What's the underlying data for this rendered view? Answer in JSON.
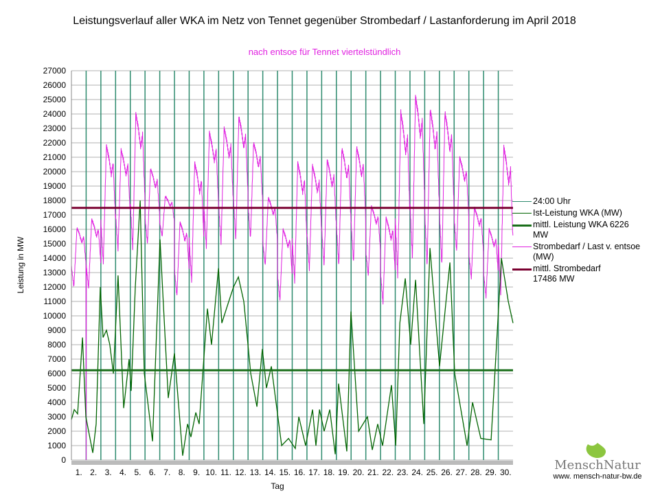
{
  "title": "Leistungsverlauf aller WKA im Netz von Tennet gegenüber  Strombedarf / Lastanforderung im April 2018",
  "subtitle": "nach entsoe für Tennet viertelstündlich",
  "colors": {
    "day_line": "#2e8b6e",
    "wind": "#006400",
    "wind_mean": "#1a6e1a",
    "demand": "#e020e0",
    "demand_mean": "#7a0030",
    "grid": "#b0b0b0"
  },
  "legend": [
    {
      "label": "24:00 Uhr"
    },
    {
      "label": "Ist-Leistung WKA (MW)"
    },
    {
      "label": "mittl. Leistung WKA 6226 MW"
    },
    {
      "label": "Strombedarf / Last v. entsoe (MW)"
    },
    {
      "label": "mittl. Strombedarf 17486 MW"
    }
  ],
  "logo": {
    "brand": "MenschNatur",
    "url": "www. mensch-natur-bw.de"
  },
  "chart_data": {
    "type": "line",
    "xlabel": "Tag",
    "ylabel": "Leistung in MW",
    "ylim": [
      0,
      27000
    ],
    "ystep": 1000,
    "xlim": [
      0,
      30
    ],
    "x_tick_labels": [
      "1.",
      "2.",
      "3.",
      "4.",
      "5.",
      "6.",
      "7.",
      "8.",
      "9.",
      "10.",
      "11.",
      "12.",
      "13.",
      "14.",
      "15.",
      "16.",
      "17.",
      "18.",
      "19.",
      "20.",
      "21.",
      "22.",
      "23.",
      "24.",
      "25.",
      "26.",
      "27.",
      "28.",
      "29.",
      "30."
    ],
    "grid": true,
    "legend_position": "right",
    "mean_lines": [
      {
        "name": "mittl. Leistung WKA",
        "value": 6226
      },
      {
        "name": "mittl. Strombedarf",
        "value": 17486
      }
    ],
    "demand_daily_min": [
      12000,
      11900,
      13700,
      14600,
      14600,
      15000,
      15500,
      11400,
      12400,
      14800,
      15000,
      15300,
      15400,
      13500,
      11100,
      12400,
      13200,
      13500,
      13500,
      13700,
      12800,
      10900,
      12800,
      14000,
      13500,
      13500,
      14500,
      12600,
      11300,
      11500
    ],
    "demand_daily_max": [
      16100,
      16700,
      21800,
      21500,
      24000,
      20200,
      18300,
      16500,
      20600,
      22700,
      23000,
      23800,
      22000,
      18200,
      16000,
      20600,
      20400,
      20800,
      21600,
      21700,
      17600,
      16800,
      24100,
      25200,
      24300,
      24100,
      21000,
      17500,
      16000,
      21700
    ],
    "demand_outlier": {
      "day": 1.0,
      "value": 0
    },
    "wind_points": [
      [
        0,
        2800
      ],
      [
        0.19,
        3500
      ],
      [
        0.42,
        3200
      ],
      [
        0.75,
        8500
      ],
      [
        0.98,
        3000
      ],
      [
        1.45,
        500
      ],
      [
        1.68,
        2500
      ],
      [
        1.96,
        12000
      ],
      [
        2.15,
        8500
      ],
      [
        2.38,
        9000
      ],
      [
        2.61,
        8000
      ],
      [
        2.85,
        6000
      ],
      [
        3.17,
        12800
      ],
      [
        3.55,
        3600
      ],
      [
        3.92,
        7000
      ],
      [
        4.06,
        4800
      ],
      [
        4.34,
        12000
      ],
      [
        4.67,
        18000
      ],
      [
        4.95,
        6000
      ],
      [
        5.51,
        1300
      ],
      [
        6.02,
        15300
      ],
      [
        6.58,
        4300
      ],
      [
        7.0,
        7400
      ],
      [
        7.56,
        300
      ],
      [
        7.89,
        2500
      ],
      [
        8.12,
        1600
      ],
      [
        8.45,
        3300
      ],
      [
        8.68,
        2500
      ],
      [
        9.24,
        10500
      ],
      [
        9.52,
        8000
      ],
      [
        9.99,
        13300
      ],
      [
        10.22,
        9500
      ],
      [
        10.69,
        11000
      ],
      [
        11.01,
        12000
      ],
      [
        11.34,
        12700
      ],
      [
        11.71,
        11000
      ],
      [
        12.18,
        6000
      ],
      [
        12.6,
        3700
      ],
      [
        12.97,
        7700
      ],
      [
        13.25,
        5000
      ],
      [
        13.58,
        6500
      ],
      [
        14.28,
        1000
      ],
      [
        14.75,
        1500
      ],
      [
        15.21,
        800
      ],
      [
        15.45,
        3000
      ],
      [
        15.91,
        1000
      ],
      [
        16.38,
        3500
      ],
      [
        16.61,
        1000
      ],
      [
        16.85,
        3500
      ],
      [
        17.17,
        2000
      ],
      [
        17.55,
        3500
      ],
      [
        17.92,
        400
      ],
      [
        18.15,
        5300
      ],
      [
        18.71,
        600
      ],
      [
        18.99,
        10300
      ],
      [
        19.51,
        2000
      ],
      [
        20.11,
        3000
      ],
      [
        20.44,
        700
      ],
      [
        20.81,
        2500
      ],
      [
        21.14,
        1000
      ],
      [
        21.74,
        5200
      ],
      [
        22.03,
        1000
      ],
      [
        22.31,
        9500
      ],
      [
        22.68,
        12600
      ],
      [
        23.05,
        8000
      ],
      [
        23.38,
        12500
      ],
      [
        23.94,
        2500
      ],
      [
        24.36,
        14700
      ],
      [
        25.01,
        6500
      ],
      [
        25.71,
        13700
      ],
      [
        26.04,
        6000
      ],
      [
        26.88,
        1000
      ],
      [
        27.25,
        4000
      ],
      [
        27.81,
        1500
      ],
      [
        28.51,
        1400
      ],
      [
        29.21,
        14000
      ],
      [
        29.68,
        11000
      ],
      [
        30,
        9500
      ]
    ]
  }
}
